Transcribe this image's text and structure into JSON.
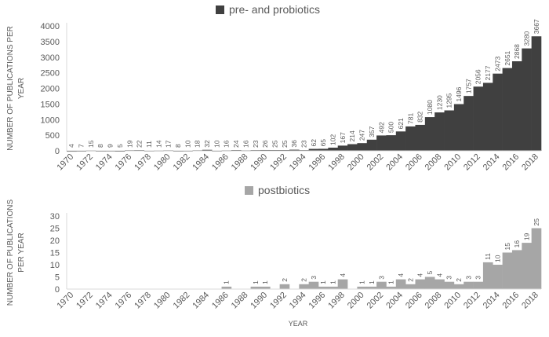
{
  "chart_data": [
    {
      "type": "bar",
      "legend": "pre- and probiotics",
      "legend_position": "top",
      "color": "#404040",
      "ylabel": "NUMBER OF PUBLICATIONS PER YEAR",
      "xlabel": "",
      "ylim": [
        0,
        4000
      ],
      "yticks": [
        0,
        500,
        1000,
        1500,
        2000,
        2500,
        3000,
        3500,
        4000
      ],
      "grid": false,
      "x": [
        1970,
        1971,
        1972,
        1973,
        1974,
        1975,
        1976,
        1977,
        1978,
        1979,
        1980,
        1981,
        1982,
        1983,
        1984,
        1985,
        1986,
        1987,
        1988,
        1989,
        1990,
        1991,
        1992,
        1993,
        1994,
        1995,
        1996,
        1997,
        1998,
        1999,
        2000,
        2001,
        2002,
        2003,
        2004,
        2005,
        2006,
        2007,
        2008,
        2009,
        2010,
        2011,
        2012,
        2013,
        2014,
        2015,
        2016,
        2017,
        2018
      ],
      "xtick_labels": [
        "1970",
        "1972",
        "1974",
        "1976",
        "1978",
        "1980",
        "1982",
        "1984",
        "1986",
        "1988",
        "1990",
        "1992",
        "1994",
        "1996",
        "1998",
        "2000",
        "2002",
        "2004",
        "2006",
        "2008",
        "2010",
        "2012",
        "2014",
        "2016",
        "2018"
      ],
      "values": [
        4,
        7,
        15,
        8,
        9,
        5,
        19,
        22,
        11,
        14,
        17,
        8,
        10,
        18,
        32,
        10,
        16,
        24,
        16,
        23,
        26,
        25,
        25,
        36,
        23,
        62,
        65,
        102,
        167,
        214,
        247,
        357,
        492,
        500,
        621,
        781,
        832,
        1080,
        1230,
        1295,
        1496,
        1757,
        2056,
        2177,
        2473,
        2651,
        2868,
        3280,
        3667
      ]
    },
    {
      "type": "bar",
      "legend": "postbiotics",
      "legend_position": "top",
      "color": "#a6a6a6",
      "ylabel": "NUMBER OF PUBLICATIONS PER YEAR",
      "xlabel": "YEAR",
      "ylim": [
        0,
        30
      ],
      "yticks": [
        0,
        5,
        10,
        15,
        20,
        25,
        30
      ],
      "grid": false,
      "x": [
        1970,
        1971,
        1972,
        1973,
        1974,
        1975,
        1976,
        1977,
        1978,
        1979,
        1980,
        1981,
        1982,
        1983,
        1984,
        1985,
        1986,
        1987,
        1988,
        1989,
        1990,
        1991,
        1992,
        1993,
        1994,
        1995,
        1996,
        1997,
        1998,
        1999,
        2000,
        2001,
        2002,
        2003,
        2004,
        2005,
        2006,
        2007,
        2008,
        2009,
        2010,
        2011,
        2012,
        2013,
        2014,
        2015,
        2016,
        2017,
        2018
      ],
      "xtick_labels": [
        "1970",
        "1972",
        "1974",
        "1976",
        "1978",
        "1980",
        "1982",
        "1984",
        "1986",
        "1988",
        "1990",
        "1992",
        "1994",
        "1996",
        "1998",
        "2000",
        "2002",
        "2004",
        "2006",
        "2008",
        "2010",
        "2012",
        "2014",
        "2016",
        "2018"
      ],
      "values": [
        0,
        0,
        0,
        0,
        0,
        0,
        0,
        0,
        0,
        0,
        0,
        0,
        0,
        0,
        0,
        0,
        1,
        0,
        0,
        1,
        1,
        0,
        2,
        0,
        2,
        3,
        1,
        1,
        4,
        0,
        1,
        1,
        3,
        1,
        4,
        2,
        4,
        5,
        4,
        3,
        2,
        3,
        3,
        11,
        10,
        15,
        16,
        19,
        25
      ]
    }
  ]
}
